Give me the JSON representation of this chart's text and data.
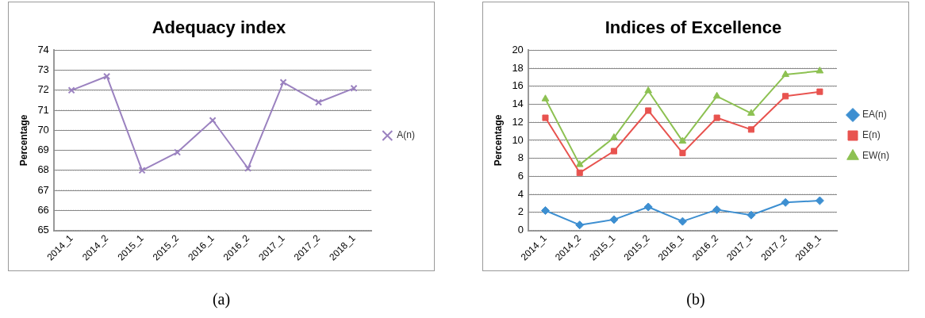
{
  "chart_data": [
    {
      "type": "line",
      "title": "Adequacy index",
      "ylabel": "Percentage",
      "categories": [
        "2014_1",
        "2014_2",
        "2015_1",
        "2015_2",
        "2016_1",
        "2016_2",
        "2017_1",
        "2017_2",
        "2018_1"
      ],
      "series": [
        {
          "name": "A(n)",
          "color": "#9b82c0",
          "marker": "cross",
          "values": [
            72.0,
            72.7,
            68.0,
            68.9,
            70.5,
            68.1,
            72.4,
            71.4,
            72.1
          ]
        }
      ],
      "ylim": [
        65,
        74
      ],
      "yticks": [
        65,
        66,
        67,
        68,
        69,
        70,
        71,
        72,
        73,
        74
      ],
      "grid": "y",
      "legend": "right",
      "annotations": [
        "(a)"
      ]
    },
    {
      "type": "line",
      "title": "Indices of Excellence",
      "ylabel": "Percentage",
      "categories": [
        "2014_1",
        "2014_2",
        "2015_1",
        "2015_2",
        "2016_1",
        "2016_2",
        "2017_1",
        "2017_2",
        "2018_1"
      ],
      "series": [
        {
          "name": "EA(n)",
          "color": "#3d8fd1",
          "marker": "diamond",
          "values": [
            2.2,
            0.6,
            1.2,
            2.6,
            1.0,
            2.3,
            1.7,
            3.1,
            3.3
          ]
        },
        {
          "name": "E(n)",
          "color": "#e8534f",
          "marker": "square",
          "values": [
            12.5,
            6.4,
            8.8,
            13.3,
            8.6,
            12.5,
            11.2,
            14.9,
            15.4
          ]
        },
        {
          "name": "EW(n)",
          "color": "#8dc152",
          "marker": "triangle",
          "values": [
            14.6,
            7.3,
            10.3,
            15.5,
            9.9,
            14.9,
            13.0,
            17.3,
            17.7
          ]
        }
      ],
      "ylim": [
        0,
        20
      ],
      "yticks": [
        0,
        2,
        4,
        6,
        8,
        10,
        12,
        14,
        16,
        18,
        20
      ],
      "grid": "y",
      "legend": "right",
      "annotations": [
        "(b)"
      ]
    }
  ]
}
